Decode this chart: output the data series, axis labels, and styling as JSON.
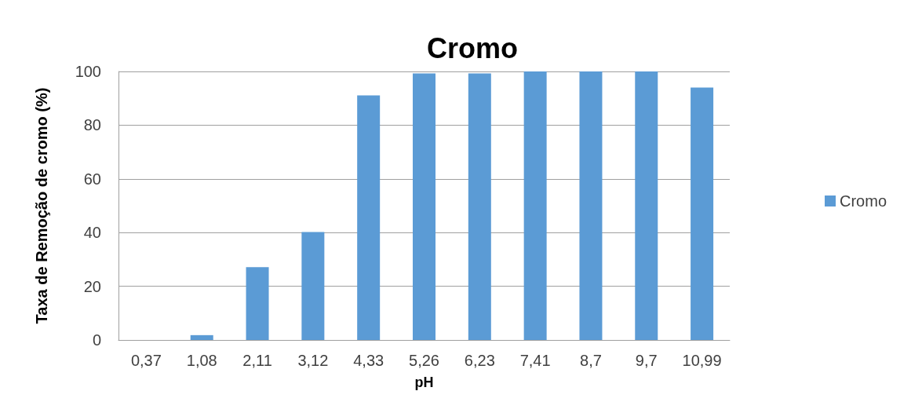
{
  "chart_data": {
    "type": "bar",
    "title": "Cromo",
    "xlabel": "pH",
    "ylabel": "Taxa de Remoção de cromo (%)",
    "categories": [
      "0,37",
      "1,08",
      "2,11",
      "3,12",
      "4,33",
      "5,26",
      "6,23",
      "7,41",
      "8,7",
      "9,7",
      "10,99"
    ],
    "series": [
      {
        "name": "Cromo",
        "color": "#5b9bd5",
        "values": [
          0,
          1.8,
          27.1,
          40.2,
          91.1,
          99.3,
          99.3,
          100,
          100,
          100,
          94.0
        ]
      }
    ],
    "ylim": [
      0,
      100
    ],
    "yticks": [
      0,
      20,
      40,
      60,
      80,
      100
    ],
    "grid": "y",
    "legend": "right"
  }
}
